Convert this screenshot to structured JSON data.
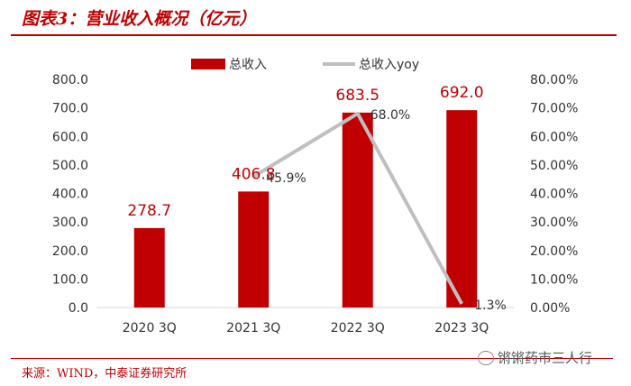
{
  "title": "图表3：营业收入概况（亿元）",
  "source": "来源：WIND，中泰证券研究所",
  "watermark": "锵锵药市三人行",
  "colors": {
    "bar": "#c00000",
    "yoy_line": "#bfbfbf",
    "label_red": "#c00000",
    "text": "#333333"
  },
  "chart_data": {
    "type": "bar",
    "categories": [
      "2020 3Q",
      "2021 3Q",
      "2022 3Q",
      "2023 3Q"
    ],
    "series": [
      {
        "name": "总收入",
        "type": "bar",
        "axis": "left",
        "values": [
          278.7,
          406.8,
          683.5,
          692.0
        ],
        "labels": [
          "278.7",
          "406.8",
          "683.5",
          "692.0"
        ]
      },
      {
        "name": "总收入yoy",
        "type": "line",
        "axis": "right",
        "values": [
          null,
          45.9,
          68.0,
          1.3
        ],
        "labels": [
          "",
          "45.9%",
          "68.0%",
          "1.3%"
        ]
      }
    ],
    "y_left": {
      "range": [
        0,
        800
      ],
      "ticks": [
        "0.0",
        "100.0",
        "200.0",
        "300.0",
        "400.0",
        "500.0",
        "600.0",
        "700.0",
        "800.0"
      ]
    },
    "y_right": {
      "range": [
        0,
        80
      ],
      "ticks": [
        "0.00%",
        "10.00%",
        "20.00%",
        "30.00%",
        "40.00%",
        "50.00%",
        "60.00%",
        "70.00%",
        "80.00%"
      ]
    },
    "legend_position": "top",
    "grid": false
  }
}
